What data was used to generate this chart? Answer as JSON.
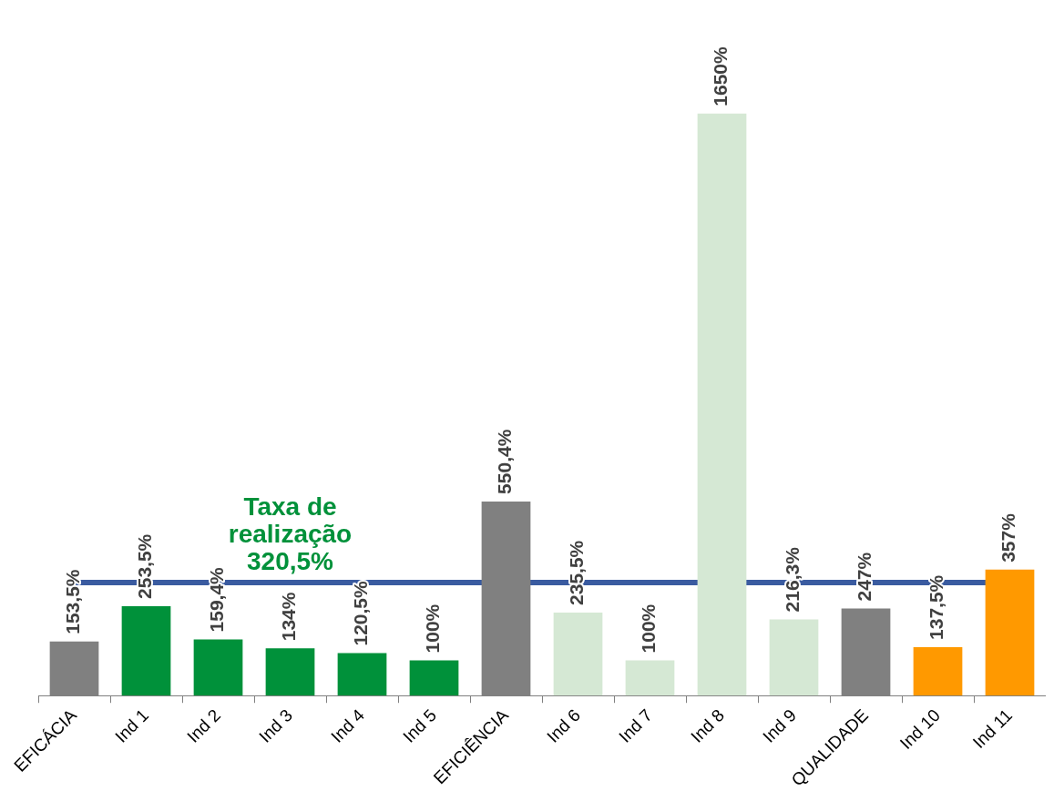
{
  "chart_data": {
    "type": "bar",
    "categories": [
      "EFICÁCIA",
      "Ind 1",
      "Ind 2",
      "Ind 3",
      "Ind 4",
      "Ind 5",
      "EFICIÊNCIA",
      "Ind 6",
      "Ind 7",
      "Ind 8",
      "Ind 9",
      "QUALIDADE",
      "Ind 10",
      "Ind 11"
    ],
    "values": [
      153.5,
      253.5,
      159.4,
      134,
      120.5,
      100,
      550.4,
      235.5,
      100,
      1650,
      216.3,
      247,
      137.5,
      357
    ],
    "colors": [
      "#808080",
      "#00913a",
      "#00913a",
      "#00913a",
      "#00913a",
      "#00913a",
      "#808080",
      "#d5e8d4",
      "#d5e8d4",
      "#d5e8d4",
      "#d5e8d4",
      "#808080",
      "#ff9900",
      "#ff9900"
    ],
    "value_labels": [
      "153,5%",
      "253,5%",
      "159,4%",
      "134%",
      "120,5%",
      "100%",
      "550,4%",
      "235,5%",
      "100%",
      "1650%",
      "216,3%",
      "247%",
      "137,5%",
      "357%"
    ],
    "ref_lines": [
      {
        "axis": "y",
        "value": 320.5,
        "label": "Taxa de\nrealização\n320,5%",
        "color": "#3a5ba0"
      }
    ],
    "grid": false,
    "legend": false
  }
}
